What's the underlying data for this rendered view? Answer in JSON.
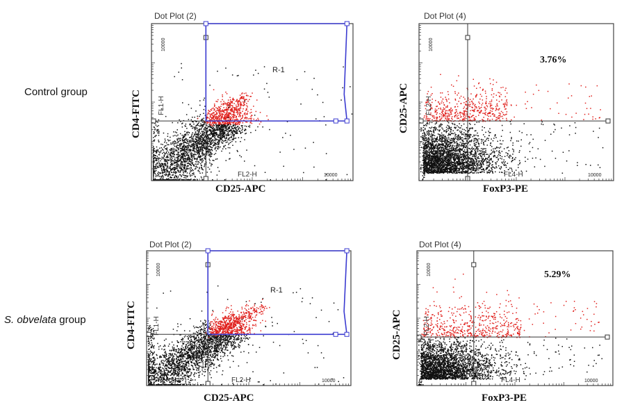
{
  "rows": [
    {
      "label": "Control group",
      "label_italic": "",
      "label_rest": ""
    },
    {
      "label": "",
      "label_italic": "S. obvelata",
      "label_rest": " group"
    }
  ],
  "chart_data": [
    {
      "type": "scatter",
      "title": "Dot Plot (2)",
      "xlabel": "CD25-APC",
      "ylabel": "CD4-FITC",
      "x_channel": "FL2-H",
      "y_channel": "FL1-H",
      "x_max_tick": "10000",
      "y_max_tick": "10000",
      "xlim": [
        0,
        10000
      ],
      "ylim": [
        0,
        10000
      ],
      "scale": "log",
      "gate_label": "R-1",
      "gate_color": "#3a3ad0",
      "point_color": "#111111",
      "highlight_color": "#e0201c",
      "group": "Control group"
    },
    {
      "type": "scatter",
      "title": "Dot Plot (4)",
      "xlabel": "FoxP3-PE",
      "ylabel": "CD25-APC",
      "x_channel": "FL4-H",
      "y_channel": "FL2-H",
      "x_max_tick": "10000",
      "y_max_tick": "10000",
      "xlim": [
        0,
        10000
      ],
      "ylim": [
        0,
        10000
      ],
      "scale": "log",
      "percentage": "3.76%",
      "point_color": "#111111",
      "highlight_color": "#e0201c",
      "group": "Control group"
    },
    {
      "type": "scatter",
      "title": "Dot Plot (2)",
      "xlabel": "CD25-APC",
      "ylabel": "CD4-FITC",
      "x_channel": "FL2-H",
      "y_channel": "FL1-H",
      "x_max_tick": "10000",
      "y_max_tick": "10000",
      "xlim": [
        0,
        10000
      ],
      "ylim": [
        0,
        10000
      ],
      "scale": "log",
      "gate_label": "R-1",
      "gate_color": "#3a3ad0",
      "point_color": "#111111",
      "highlight_color": "#e0201c",
      "group": "S. obvelata group"
    },
    {
      "type": "scatter",
      "title": "Dot Plot (4)",
      "xlabel": "FoxP3-PE",
      "ylabel": "CD25-APC",
      "x_channel": "FL4-H",
      "y_channel": "FL2-H",
      "x_max_tick": "10000",
      "y_max_tick": "10000",
      "xlim": [
        0,
        10000
      ],
      "ylim": [
        0,
        10000
      ],
      "scale": "log",
      "percentage": "5.29%",
      "point_color": "#111111",
      "highlight_color": "#e0201c",
      "group": "S. obvelata group"
    }
  ]
}
